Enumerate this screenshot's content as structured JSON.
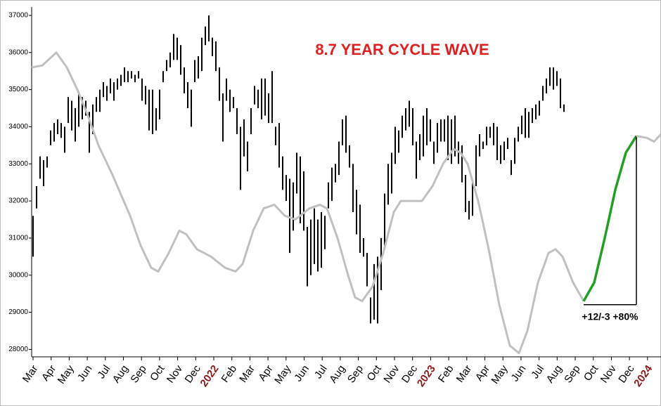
{
  "chart_data": {
    "type": "combo",
    "title": "8.7 YEAR CYCLE WAVE",
    "title_color": "#e02020",
    "annotation": "+12/-3 +80%",
    "year_color": "#8b1a1a",
    "ylim": [
      27800,
      37150
    ],
    "yticks": [
      28000,
      29000,
      30000,
      31000,
      32000,
      33000,
      34000,
      35000,
      36000,
      37000
    ],
    "xlim": [
      -0.4,
      178.6
    ],
    "xticks": [
      {
        "value": 0,
        "label": "Mar"
      },
      {
        "value": 5.14,
        "label": "Apr"
      },
      {
        "value": 10.28,
        "label": "May"
      },
      {
        "value": 15.42,
        "label": "Jun"
      },
      {
        "value": 20.56,
        "label": "Jul"
      },
      {
        "value": 25.7,
        "label": "Aug"
      },
      {
        "value": 30.84,
        "label": "Sep"
      },
      {
        "value": 35.98,
        "label": "Oct"
      },
      {
        "value": 41.12,
        "label": "Nov"
      },
      {
        "value": 46.26,
        "label": "Dec"
      },
      {
        "value": 51.4,
        "label": "2022"
      },
      {
        "value": 56.54,
        "label": "Feb"
      },
      {
        "value": 61.68,
        "label": "Mar"
      },
      {
        "value": 66.82,
        "label": "Apr"
      },
      {
        "value": 71.96,
        "label": "May"
      },
      {
        "value": 77.1,
        "label": "Jun"
      },
      {
        "value": 82.24,
        "label": "Jul"
      },
      {
        "value": 87.38,
        "label": "Aug"
      },
      {
        "value": 92.52,
        "label": "Sep"
      },
      {
        "value": 97.66,
        "label": "Oct"
      },
      {
        "value": 102.8,
        "label": "Nov"
      },
      {
        "value": 107.94,
        "label": "Dec"
      },
      {
        "value": 113.08,
        "label": "2023"
      },
      {
        "value": 118.22,
        "label": "Feb"
      },
      {
        "value": 123.36,
        "label": "Mar"
      },
      {
        "value": 128.5,
        "label": "Apr"
      },
      {
        "value": 133.64,
        "label": "May"
      },
      {
        "value": 138.78,
        "label": "Jun"
      },
      {
        "value": 143.92,
        "label": "Jul"
      },
      {
        "value": 149.06,
        "label": "Aug"
      },
      {
        "value": 154.2,
        "label": "Sep"
      },
      {
        "value": 159.34,
        "label": "Oct"
      },
      {
        "value": 164.48,
        "label": "Nov"
      },
      {
        "value": 169.62,
        "label": "Dec"
      },
      {
        "value": 174.76,
        "label": "2024"
      }
    ],
    "series": [
      {
        "type": "range",
        "color": "#000000",
        "x": [
          0,
          1,
          2,
          3,
          4,
          5,
          6,
          7,
          8,
          9,
          10,
          11,
          12,
          13,
          14,
          15,
          16,
          17,
          18,
          19,
          20,
          21,
          22,
          23,
          24,
          25,
          26,
          27,
          28,
          29,
          30,
          31,
          32,
          33,
          34,
          35,
          36,
          37,
          38,
          39,
          40,
          41,
          42,
          43,
          44,
          45,
          46,
          47,
          48,
          49,
          50,
          51,
          52,
          53,
          54,
          55,
          56,
          57,
          58,
          59,
          60,
          61,
          62,
          63,
          64,
          65,
          66,
          67,
          68,
          69,
          70,
          71,
          72,
          73,
          74,
          75,
          76,
          77,
          78,
          79,
          80,
          81,
          82,
          83,
          84,
          85,
          86,
          87,
          88,
          89,
          90,
          91,
          92,
          93,
          94,
          95,
          96,
          97,
          98,
          99,
          100,
          101,
          102,
          103,
          104,
          105,
          106,
          107,
          108,
          109,
          110,
          111,
          112,
          113,
          114,
          115,
          116,
          117,
          118,
          119,
          120,
          121,
          122,
          123,
          124,
          125,
          126,
          127,
          128,
          129,
          130,
          131,
          132,
          133,
          134,
          135,
          136,
          137,
          138,
          139,
          140,
          141,
          142,
          143,
          144,
          145,
          146,
          147,
          148,
          149,
          150,
          151
        ],
        "high": [
          31600,
          32400,
          33200,
          33100,
          33200,
          33900,
          34100,
          34200,
          34100,
          34000,
          34800,
          34700,
          34500,
          34900,
          34800,
          34700,
          34400,
          34600,
          34800,
          35000,
          35200,
          35100,
          35300,
          35200,
          35300,
          35400,
          35600,
          35500,
          35500,
          35400,
          35500,
          35300,
          35100,
          35000,
          35000,
          34500,
          35000,
          35500,
          35800,
          36000,
          36500,
          36400,
          36200,
          35600,
          35200,
          35000,
          35800,
          35900,
          36400,
          36700,
          37000,
          36400,
          36300,
          35600,
          34900,
          35300,
          35000,
          34800,
          34500,
          34000,
          34200,
          33600,
          34500,
          35100,
          35000,
          35300,
          35300,
          34900,
          35500,
          34000,
          34100,
          33200,
          32700,
          32600,
          32500,
          33300,
          33200,
          32800,
          31300,
          31500,
          31800,
          31500,
          31700,
          31600,
          32500,
          32900,
          33000,
          33600,
          34200,
          34300,
          33500,
          33000,
          32300,
          31900,
          31000,
          30600,
          29400,
          30300,
          30500,
          31000,
          32200,
          33000,
          33300,
          34000,
          33900,
          34300,
          34500,
          34700,
          34500,
          33600,
          33800,
          34300,
          34500,
          34200,
          33600,
          34100,
          34200,
          34200,
          34300,
          34200,
          34300,
          33600,
          33500,
          32700,
          32000,
          32500,
          33500,
          33800,
          33600,
          34000,
          34000,
          34100,
          34000,
          33500,
          33600,
          33700,
          33100,
          33700,
          34000,
          34300,
          34500,
          34400,
          34500,
          34600,
          34700,
          35100,
          35300,
          35600,
          35600,
          35500,
          35300,
          34600
        ],
        "low": [
          30500,
          31800,
          32600,
          32400,
          32900,
          33500,
          33600,
          33800,
          33700,
          33300,
          34100,
          33900,
          33600,
          34000,
          34200,
          34300,
          33300,
          33800,
          34400,
          34400,
          34800,
          34700,
          34900,
          34700,
          35000,
          35100,
          35200,
          35200,
          35300,
          35200,
          35300,
          34700,
          34600,
          33900,
          33800,
          33900,
          34200,
          35200,
          35500,
          35600,
          35800,
          35800,
          35400,
          34900,
          34500,
          34000,
          35200,
          35300,
          35500,
          36200,
          36300,
          35900,
          35500,
          34700,
          33600,
          34700,
          34400,
          34500,
          33800,
          32300,
          33200,
          32800,
          33800,
          34600,
          34500,
          34200,
          34300,
          34100,
          34100,
          33500,
          32900,
          32300,
          32000,
          30600,
          31200,
          32200,
          31400,
          31200,
          29700,
          30000,
          30300,
          30100,
          30200,
          30700,
          31800,
          32000,
          32500,
          32700,
          33500,
          33300,
          32900,
          31700,
          31100,
          30600,
          30500,
          29700,
          28700,
          28800,
          28700,
          29600,
          30700,
          31900,
          32200,
          33000,
          33300,
          33700,
          33900,
          34000,
          33500,
          32600,
          33100,
          33200,
          33500,
          33600,
          33000,
          33300,
          33600,
          33600,
          33100,
          33000,
          33200,
          33000,
          32500,
          31700,
          31500,
          31600,
          32400,
          33200,
          33400,
          33500,
          33700,
          33500,
          33100,
          33000,
          33100,
          33400,
          32700,
          33000,
          33600,
          33800,
          33700,
          33700,
          34100,
          34200,
          34300,
          34700,
          34900,
          35100,
          35000,
          35100,
          34500,
          34400
        ]
      },
      {
        "type": "line",
        "color": "#c0c0c0",
        "x": [
          -0.4,
          2.6,
          6.6,
          9.6,
          12.6,
          15.6,
          18.6,
          22.6,
          27.6,
          30.6,
          33.6,
          35.6,
          38.6,
          41.6,
          43.6,
          46.6,
          50.6,
          54.6,
          57.6,
          59.6,
          62.6,
          65.6,
          68.6,
          71.6,
          74.6,
          78.6,
          81.6,
          83.6,
          86.6,
          89.6,
          91.6,
          93.6,
          96.6,
          99.6,
          102.6,
          104.6,
          107.6,
          110.6,
          113.6,
          116.6,
          119.6,
          121.6,
          123.6,
          126.6,
          129.6,
          132.6,
          135.6,
          138.2,
          140.6,
          143.6,
          146.6,
          148.6,
          150.6,
          153.6,
          156.6
        ],
        "values": [
          35600,
          35650,
          36000,
          35600,
          35000,
          34300,
          33500,
          32700,
          31600,
          30800,
          30200,
          30100,
          30600,
          31200,
          31100,
          30700,
          30500,
          30200,
          30100,
          30300,
          31200,
          31800,
          31900,
          31600,
          31500,
          31800,
          31900,
          31800,
          31000,
          30000,
          29400,
          29300,
          29700,
          30600,
          31700,
          32000,
          32000,
          32000,
          32400,
          33000,
          33400,
          33300,
          33000,
          32000,
          30700,
          29200,
          28100,
          27900,
          28500,
          29800,
          30600,
          30700,
          30500,
          29800,
          29300
        ]
      },
      {
        "type": "projection",
        "color": "#22a022",
        "x": [
          156.6,
          159.6,
          162.6,
          165.6,
          168.6,
          171.6
        ],
        "values": [
          29300,
          29800,
          31000,
          32300,
          33300,
          33750
        ]
      },
      {
        "type": "line",
        "color": "#c0c0c0",
        "x": [
          171.6,
          174.6,
          176.6,
          178.6
        ],
        "values": [
          33750,
          33700,
          33600,
          33800
        ]
      }
    ]
  }
}
